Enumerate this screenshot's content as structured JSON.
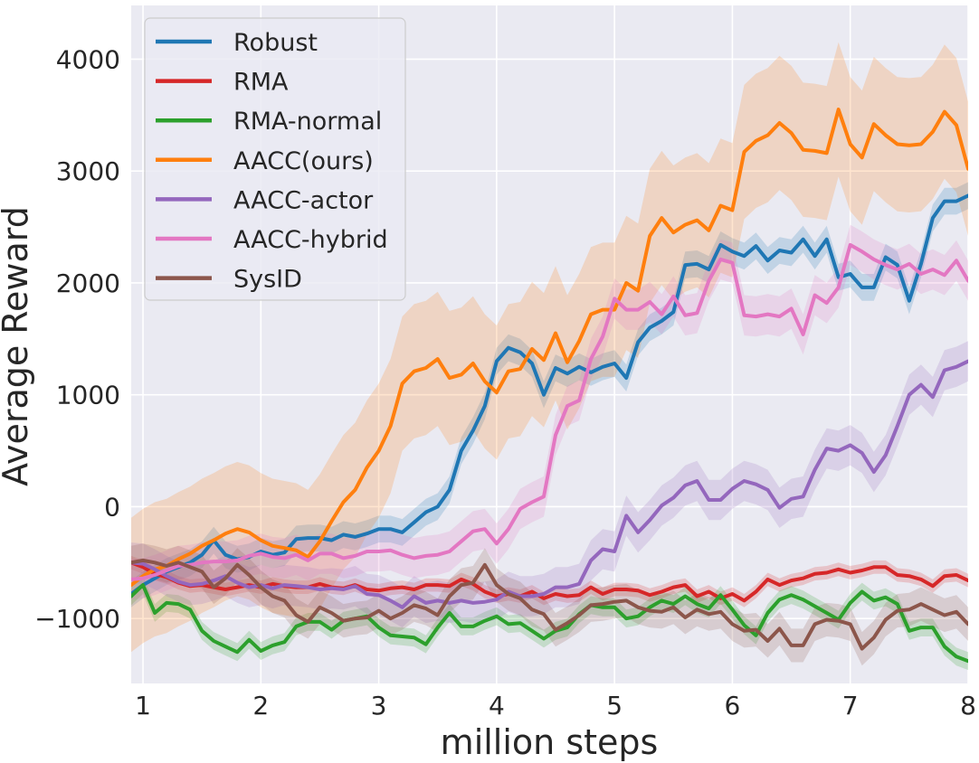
{
  "chart_data": {
    "type": "line",
    "xlabel": "million steps",
    "ylabel": "Average Reward",
    "xlim": [
      0.9,
      8.0
    ],
    "ylim": [
      -1580,
      4480
    ],
    "x_ticks": [
      1,
      2,
      3,
      4,
      5,
      6,
      7,
      8
    ],
    "y_ticks": [
      -1000,
      0,
      1000,
      2000,
      3000,
      4000
    ],
    "y_tick_labels": [
      "−1000",
      "0",
      "1000",
      "2000",
      "3000",
      "4000"
    ],
    "grid": true,
    "legend_position": "top-left",
    "background_color": "#eaeaf2",
    "x": [
      0.9,
      1.0,
      1.1,
      1.2,
      1.3,
      1.4,
      1.5,
      1.6,
      1.7,
      1.8,
      1.9,
      2.0,
      2.1,
      2.2,
      2.3,
      2.4,
      2.5,
      2.6,
      2.7,
      2.8,
      2.9,
      3.0,
      3.1,
      3.2,
      3.3,
      3.4,
      3.5,
      3.6,
      3.7,
      3.8,
      3.9,
      4.0,
      4.1,
      4.2,
      4.3,
      4.4,
      4.5,
      4.6,
      4.7,
      4.8,
      4.9,
      5.0,
      5.1,
      5.2,
      5.3,
      5.4,
      5.5,
      5.6,
      5.7,
      5.8,
      5.9,
      6.0,
      6.1,
      6.2,
      6.3,
      6.4,
      6.5,
      6.6,
      6.7,
      6.8,
      6.9,
      7.0,
      7.1,
      7.2,
      7.3,
      7.4,
      7.5,
      7.6,
      7.7,
      7.8,
      7.9,
      8.0
    ],
    "series": [
      {
        "name": "Robust",
        "color": "#1f77b4",
        "band": 120,
        "values": [
          -780,
          -700,
          -640,
          -580,
          -540,
          -500,
          -430,
          -300,
          -430,
          -470,
          -450,
          -400,
          -430,
          -410,
          -290,
          -280,
          -280,
          -300,
          -250,
          -270,
          -240,
          -200,
          -200,
          -230,
          -140,
          -50,
          0,
          150,
          500,
          680,
          900,
          1300,
          1420,
          1380,
          1280,
          1000,
          1240,
          1190,
          1250,
          1200,
          1250,
          1280,
          1150,
          1470,
          1600,
          1660,
          1740,
          2160,
          2170,
          2120,
          2340,
          2280,
          2240,
          2330,
          2200,
          2290,
          2270,
          2390,
          2240,
          2390,
          2050,
          2080,
          1960,
          1960,
          2230,
          2160,
          1840,
          2170,
          2580,
          2730,
          2730,
          2780
        ]
      },
      {
        "name": "RMA",
        "color": "#d62728",
        "band": 60,
        "values": [
          -500,
          -540,
          -600,
          -630,
          -680,
          -710,
          -700,
          -720,
          -740,
          -720,
          -700,
          -720,
          -690,
          -710,
          -720,
          -720,
          -690,
          -720,
          -730,
          -700,
          -740,
          -750,
          -730,
          -720,
          -740,
          -700,
          -700,
          -710,
          -650,
          -690,
          -760,
          -800,
          -780,
          -800,
          -760,
          -820,
          -780,
          -800,
          -790,
          -720,
          -780,
          -740,
          -740,
          -750,
          -790,
          -760,
          -720,
          -700,
          -800,
          -760,
          -820,
          -780,
          -840,
          -760,
          -650,
          -700,
          -660,
          -640,
          -600,
          -590,
          -560,
          -590,
          -570,
          -540,
          -540,
          -610,
          -620,
          -650,
          -710,
          -620,
          -610,
          -660
        ]
      },
      {
        "name": "RMA-normal",
        "color": "#2ca02c",
        "band": 80,
        "values": [
          -800,
          -700,
          -950,
          -860,
          -870,
          -920,
          -1110,
          -1200,
          -1250,
          -1300,
          -1190,
          -1290,
          -1240,
          -1210,
          -1070,
          -1030,
          -1030,
          -1100,
          -1020,
          -1000,
          -980,
          -1080,
          -1150,
          -1160,
          -1170,
          -1230,
          -1080,
          -950,
          -1070,
          -1070,
          -1020,
          -980,
          -1050,
          -1040,
          -1110,
          -1180,
          -1110,
          -1080,
          -960,
          -880,
          -900,
          -900,
          -1000,
          -980,
          -900,
          -840,
          -870,
          -800,
          -870,
          -910,
          -790,
          -920,
          -1060,
          -1150,
          -950,
          -830,
          -790,
          -830,
          -890,
          -950,
          -1010,
          -860,
          -760,
          -840,
          -810,
          -870,
          -1110,
          -1080,
          -1080,
          -1250,
          -1340,
          -1380
        ]
      },
      {
        "name": "AACC(ours)",
        "color": "#ff7f0e",
        "band": 600,
        "values": [
          -700,
          -620,
          -560,
          -530,
          -470,
          -420,
          -350,
          -300,
          -240,
          -200,
          -230,
          -300,
          -350,
          -370,
          -390,
          -450,
          -310,
          -130,
          40,
          150,
          350,
          500,
          720,
          1100,
          1210,
          1240,
          1320,
          1150,
          1180,
          1280,
          1120,
          1020,
          1210,
          1230,
          1410,
          1310,
          1550,
          1290,
          1480,
          1720,
          1760,
          1760,
          2000,
          1930,
          2420,
          2580,
          2450,
          2520,
          2560,
          2470,
          2690,
          2650,
          3170,
          3270,
          3320,
          3430,
          3340,
          3190,
          3180,
          3160,
          3550,
          3240,
          3120,
          3420,
          3320,
          3240,
          3230,
          3240,
          3350,
          3530,
          3410,
          3020
        ]
      },
      {
        "name": "AACC-actor",
        "color": "#9467bd",
        "band": 180,
        "values": [
          -500,
          -510,
          -560,
          -620,
          -670,
          -700,
          -690,
          -660,
          -620,
          -680,
          -720,
          -700,
          -730,
          -700,
          -710,
          -720,
          -740,
          -730,
          -740,
          -710,
          -780,
          -790,
          -840,
          -900,
          -800,
          -860,
          -840,
          -860,
          -840,
          -860,
          -850,
          -830,
          -760,
          -800,
          -800,
          -780,
          -720,
          -720,
          -690,
          -480,
          -380,
          -400,
          -80,
          -230,
          -120,
          10,
          80,
          190,
          230,
          60,
          60,
          160,
          230,
          200,
          150,
          -10,
          70,
          90,
          330,
          520,
          500,
          550,
          480,
          310,
          460,
          720,
          1000,
          1090,
          980,
          1220,
          1250,
          1300
        ]
      },
      {
        "name": "AACC-hybrid",
        "color": "#e377c2",
        "band": 180,
        "values": [
          -650,
          -640,
          -610,
          -570,
          -530,
          -520,
          -500,
          -490,
          -490,
          -480,
          -440,
          -420,
          -450,
          -460,
          -430,
          -480,
          -420,
          -420,
          -460,
          -440,
          -400,
          -400,
          -390,
          -430,
          -460,
          -440,
          -430,
          -400,
          -310,
          -220,
          -200,
          -330,
          -200,
          -20,
          40,
          90,
          640,
          900,
          950,
          1320,
          1520,
          1860,
          1760,
          1760,
          1830,
          1720,
          1880,
          1710,
          1730,
          2020,
          2210,
          2180,
          1710,
          1700,
          1720,
          1700,
          1770,
          1540,
          1890,
          1820,
          1960,
          2340,
          2280,
          2210,
          2160,
          2120,
          2170,
          2080,
          2120,
          2070,
          2200,
          2020
        ]
      },
      {
        "name": "SysID",
        "color": "#8c564b",
        "band": 150,
        "values": [
          -500,
          -480,
          -500,
          -530,
          -500,
          -540,
          -580,
          -720,
          -640,
          -520,
          -610,
          -720,
          -800,
          -840,
          -970,
          -1030,
          -900,
          -950,
          -1020,
          -1000,
          -990,
          -930,
          -1000,
          -950,
          -880,
          -910,
          -970,
          -800,
          -700,
          -680,
          -520,
          -700,
          -780,
          -820,
          -920,
          -960,
          -1100,
          -1040,
          -970,
          -880,
          -870,
          -850,
          -840,
          -900,
          -930,
          -940,
          -900,
          -990,
          -920,
          -960,
          -940,
          -1050,
          -1110,
          -1100,
          -1200,
          -1090,
          -1240,
          -1240,
          -1050,
          -1010,
          -1020,
          -1050,
          -1270,
          -1170,
          -1010,
          -930,
          -920,
          -870,
          -920,
          -970,
          -940,
          -1050
        ]
      }
    ]
  }
}
